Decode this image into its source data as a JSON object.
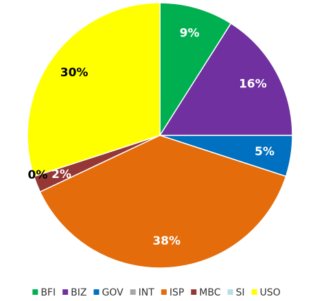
{
  "chart_data": {
    "type": "pie",
    "categories": [
      "BFI",
      "BIZ",
      "GOV",
      "INT",
      "ISP",
      "MBC",
      "SI",
      "USO"
    ],
    "values": [
      9,
      16,
      5,
      0,
      38,
      2,
      0,
      30
    ],
    "value_labels": [
      "9%",
      "16%",
      "5%",
      null,
      "38%",
      "2%",
      "0%",
      "30%"
    ],
    "colors": [
      "#00b050",
      "#7030a0",
      "#0070c0",
      "#a6a6a6",
      "#e46c0a",
      "#953735",
      "#b7dee8",
      "#ffff00"
    ],
    "legend": "bottom"
  }
}
